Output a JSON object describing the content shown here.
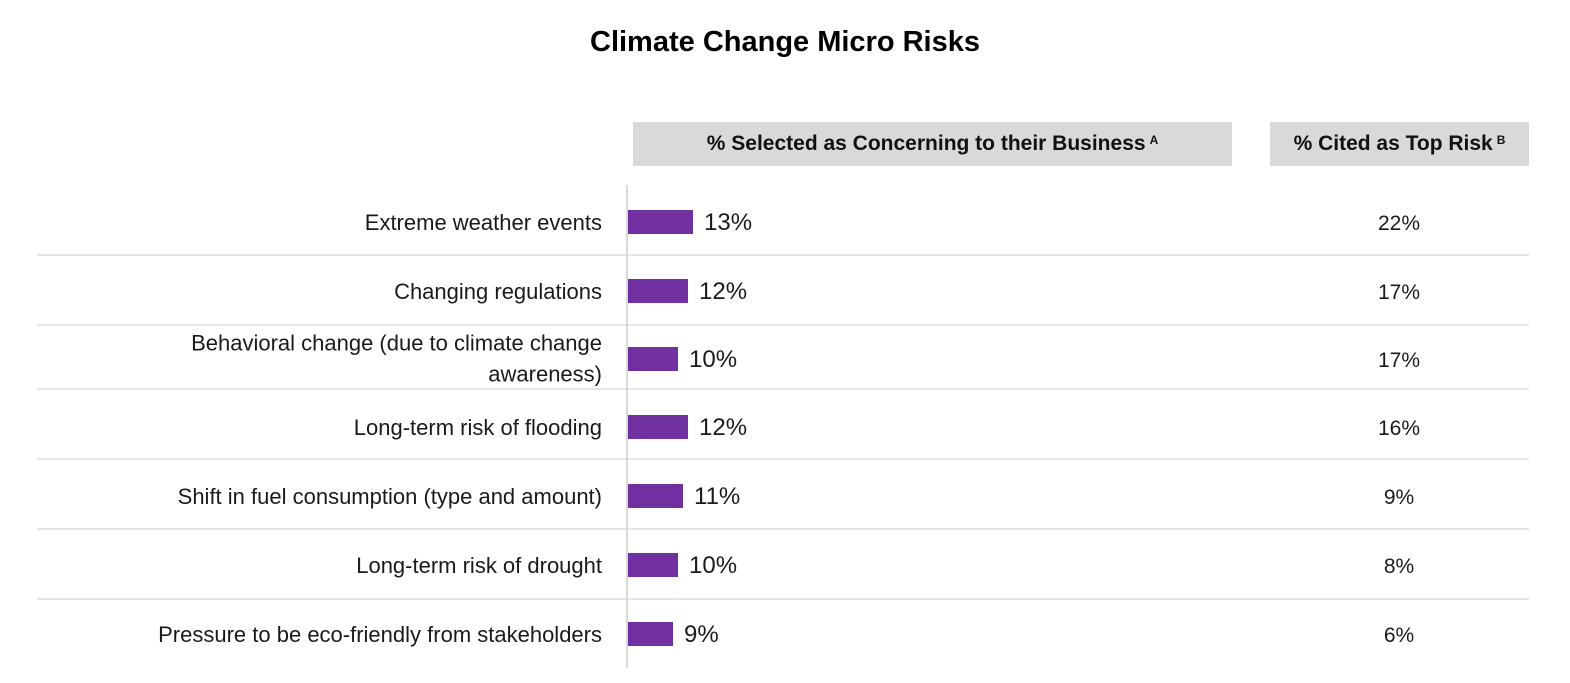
{
  "chart_data": {
    "type": "bar",
    "orientation": "horizontal",
    "title": "Climate Change Micro Risks",
    "column_headers": {
      "selected": "% Selected as Concerning to their Business",
      "selected_note": "A",
      "top": "% Cited as Top Risk",
      "top_note": "B"
    },
    "categories": [
      [
        "Extreme weather events"
      ],
      [
        "Changing regulations"
      ],
      [
        "Behavioral change (due to climate change",
        "awareness)"
      ],
      [
        "Long-term risk of flooding"
      ],
      [
        "Shift in fuel consumption (type and amount)"
      ],
      [
        "Long-term risk of drought"
      ],
      [
        "Pressure to be eco-friendly from stakeholders"
      ]
    ],
    "series": [
      {
        "values": [
          13,
          12,
          10,
          12,
          11,
          10,
          9
        ]
      },
      {
        "values": [
          22,
          17,
          17,
          16,
          9,
          8,
          6
        ]
      }
    ],
    "value_labels": [
      "13%",
      "12%",
      "10%",
      "12%",
      "11%",
      "10%",
      "9%"
    ],
    "top_risk_labels": [
      "22%",
      "17%",
      "17%",
      "16%",
      "9%",
      "8%",
      "6%"
    ],
    "bar_color": "#7030a0",
    "grid": false
  }
}
